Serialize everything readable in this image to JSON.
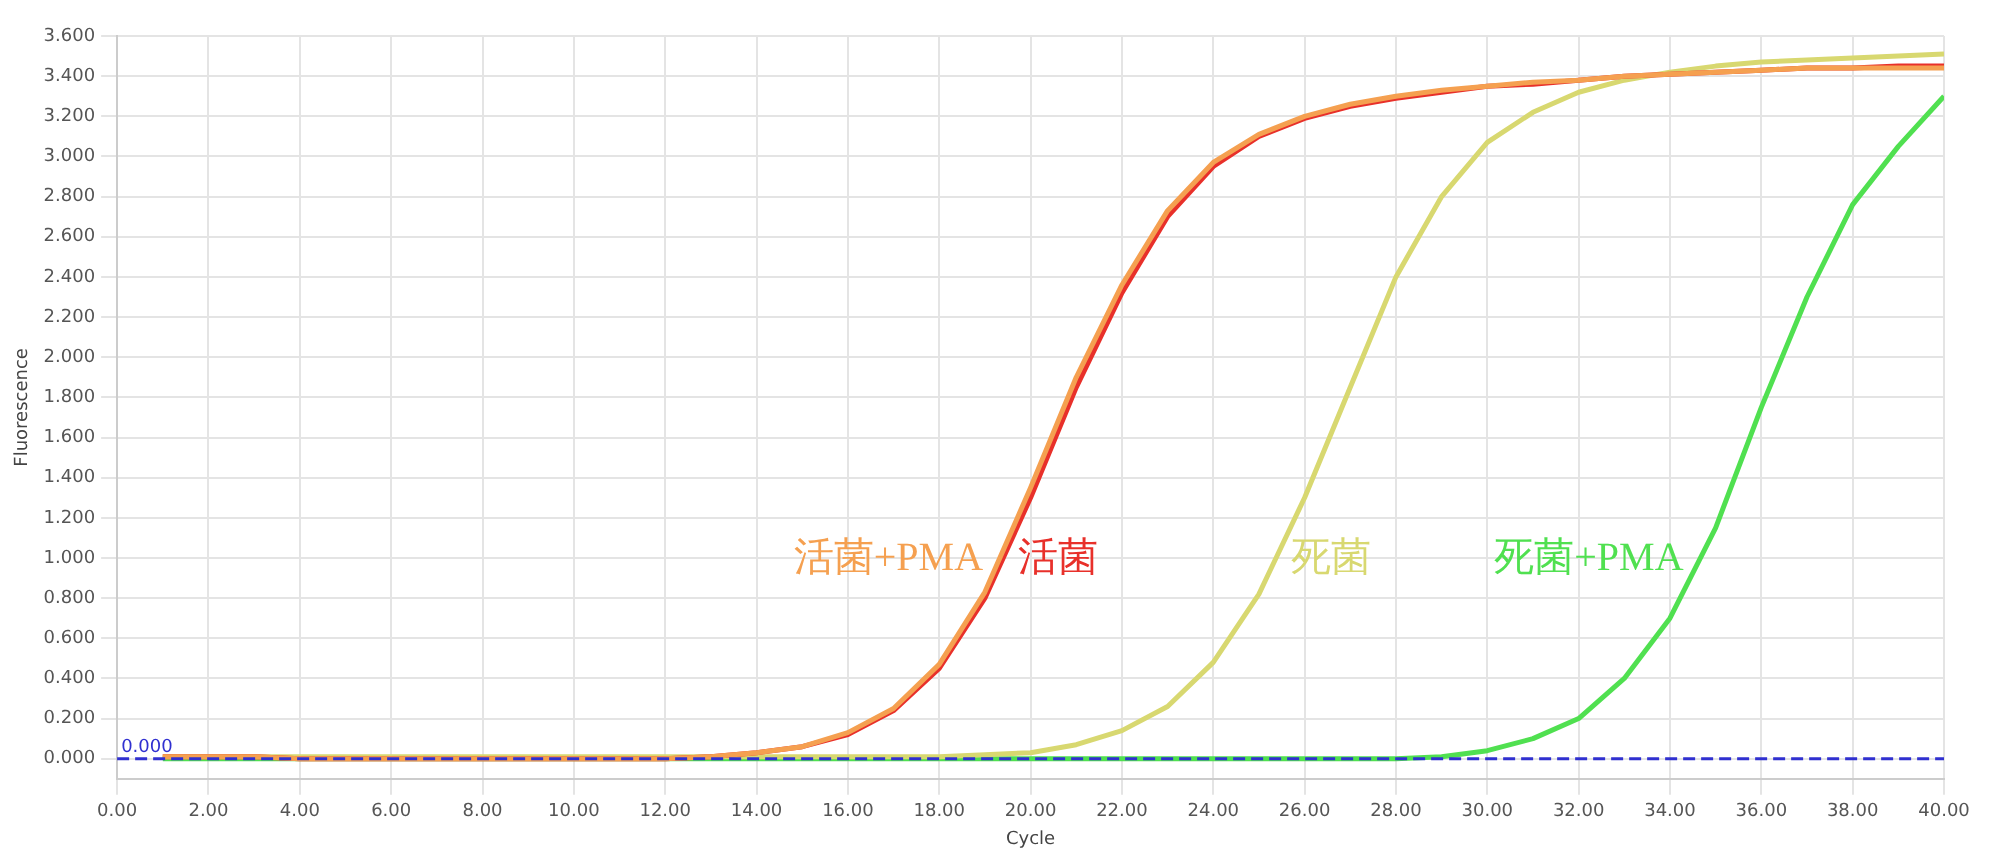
{
  "chart_data": {
    "type": "line",
    "xlabel": "Cycle",
    "ylabel": "Fluorescence",
    "x": [
      1,
      2,
      3,
      4,
      5,
      6,
      7,
      8,
      9,
      10,
      11,
      12,
      13,
      14,
      15,
      16,
      17,
      18,
      19,
      20,
      21,
      22,
      23,
      24,
      25,
      26,
      27,
      28,
      29,
      30,
      31,
      32,
      33,
      34,
      35,
      36,
      37,
      38,
      39,
      40
    ],
    "series": [
      {
        "name": "活菌+PMA",
        "color": "#f5a050",
        "values": [
          0.01,
          0.01,
          0.01,
          0.0,
          0.0,
          0.0,
          0.0,
          0.0,
          0.0,
          0.0,
          0.0,
          0.0,
          0.01,
          0.03,
          0.06,
          0.13,
          0.25,
          0.47,
          0.83,
          1.35,
          1.9,
          2.36,
          2.73,
          2.97,
          3.11,
          3.2,
          3.26,
          3.3,
          3.33,
          3.35,
          3.37,
          3.38,
          3.4,
          3.41,
          3.42,
          3.43,
          3.44,
          3.44,
          3.44,
          3.44
        ]
      },
      {
        "name": "活菌",
        "color": "#e8302a",
        "values": [
          0.01,
          0.01,
          0.01,
          0.0,
          0.0,
          0.0,
          0.0,
          0.0,
          0.0,
          0.0,
          0.0,
          0.0,
          0.01,
          0.03,
          0.06,
          0.12,
          0.24,
          0.45,
          0.8,
          1.3,
          1.85,
          2.32,
          2.7,
          2.95,
          3.1,
          3.19,
          3.25,
          3.29,
          3.32,
          3.35,
          3.36,
          3.38,
          3.4,
          3.41,
          3.42,
          3.43,
          3.44,
          3.44,
          3.45,
          3.45
        ]
      },
      {
        "name": "死菌",
        "color": "#d8d870",
        "values": [
          0.01,
          0.01,
          0.01,
          0.01,
          0.01,
          0.01,
          0.01,
          0.01,
          0.01,
          0.01,
          0.01,
          0.01,
          0.01,
          0.01,
          0.01,
          0.01,
          0.01,
          0.01,
          0.02,
          0.03,
          0.07,
          0.14,
          0.26,
          0.48,
          0.82,
          1.3,
          1.85,
          2.4,
          2.8,
          3.07,
          3.22,
          3.32,
          3.38,
          3.42,
          3.45,
          3.47,
          3.48,
          3.49,
          3.5,
          3.51
        ]
      },
      {
        "name": "死菌+PMA",
        "color": "#50e050",
        "values": [
          0.0,
          0.0,
          0.0,
          0.0,
          0.0,
          0.0,
          0.0,
          0.0,
          0.0,
          0.0,
          0.0,
          0.0,
          0.0,
          0.0,
          0.0,
          0.0,
          0.0,
          0.0,
          0.0,
          0.0,
          0.0,
          0.0,
          0.0,
          0.0,
          0.0,
          0.0,
          0.0,
          0.0,
          0.01,
          0.04,
          0.1,
          0.2,
          0.4,
          0.7,
          1.15,
          1.75,
          2.3,
          2.76,
          3.05,
          3.3
        ]
      }
    ],
    "xlim": [
      0,
      40
    ],
    "xticks": [
      {
        "value": 0,
        "label": "0.00"
      },
      {
        "value": 2,
        "label": "2.00"
      },
      {
        "value": 4,
        "label": "4.00"
      },
      {
        "value": 6,
        "label": "6.00"
      },
      {
        "value": 8,
        "label": "8.00"
      },
      {
        "value": 10,
        "label": "10.00"
      },
      {
        "value": 12,
        "label": "12.00"
      },
      {
        "value": 14,
        "label": "14.00"
      },
      {
        "value": 16,
        "label": "16.00"
      },
      {
        "value": 18,
        "label": "18.00"
      },
      {
        "value": 20,
        "label": "20.00"
      },
      {
        "value": 22,
        "label": "22.00"
      },
      {
        "value": 24,
        "label": "24.00"
      },
      {
        "value": 26,
        "label": "26.00"
      },
      {
        "value": 28,
        "label": "28.00"
      },
      {
        "value": 30,
        "label": "30.00"
      },
      {
        "value": 32,
        "label": "32.00"
      },
      {
        "value": 34,
        "label": "34.00"
      },
      {
        "value": 36,
        "label": "36.00"
      },
      {
        "value": 38,
        "label": "38.00"
      },
      {
        "value": 40,
        "label": "40.00"
      }
    ],
    "ylim": [
      -0.1,
      3.6
    ],
    "yticks": [
      {
        "value": 0,
        "label": "0.000"
      },
      {
        "value": 0.2,
        "label": "0.200"
      },
      {
        "value": 0.4,
        "label": "0.400"
      },
      {
        "value": 0.6,
        "label": "0.600"
      },
      {
        "value": 0.8,
        "label": "0.800"
      },
      {
        "value": 1,
        "label": "1.000"
      },
      {
        "value": 1.2,
        "label": "1.200"
      },
      {
        "value": 1.4,
        "label": "1.400"
      },
      {
        "value": 1.6,
        "label": "1.600"
      },
      {
        "value": 1.8,
        "label": "1.800"
      },
      {
        "value": 2,
        "label": "2.000"
      },
      {
        "value": 2.2,
        "label": "2.200"
      },
      {
        "value": 2.4,
        "label": "2.400"
      },
      {
        "value": 2.6,
        "label": "2.600"
      },
      {
        "value": 2.8,
        "label": "2.800"
      },
      {
        "value": 3,
        "label": "3.000"
      },
      {
        "value": 3.2,
        "label": "3.200"
      },
      {
        "value": 3.4,
        "label": "3.400"
      },
      {
        "value": 3.6,
        "label": "3.600"
      }
    ],
    "ref_lines": [
      {
        "axis": "y",
        "value": 0,
        "label": "0.000",
        "color": "#3030d0",
        "line_style": "dashed"
      }
    ],
    "grid": true,
    "legend": false,
    "marker": "none",
    "line_style": "solid"
  }
}
